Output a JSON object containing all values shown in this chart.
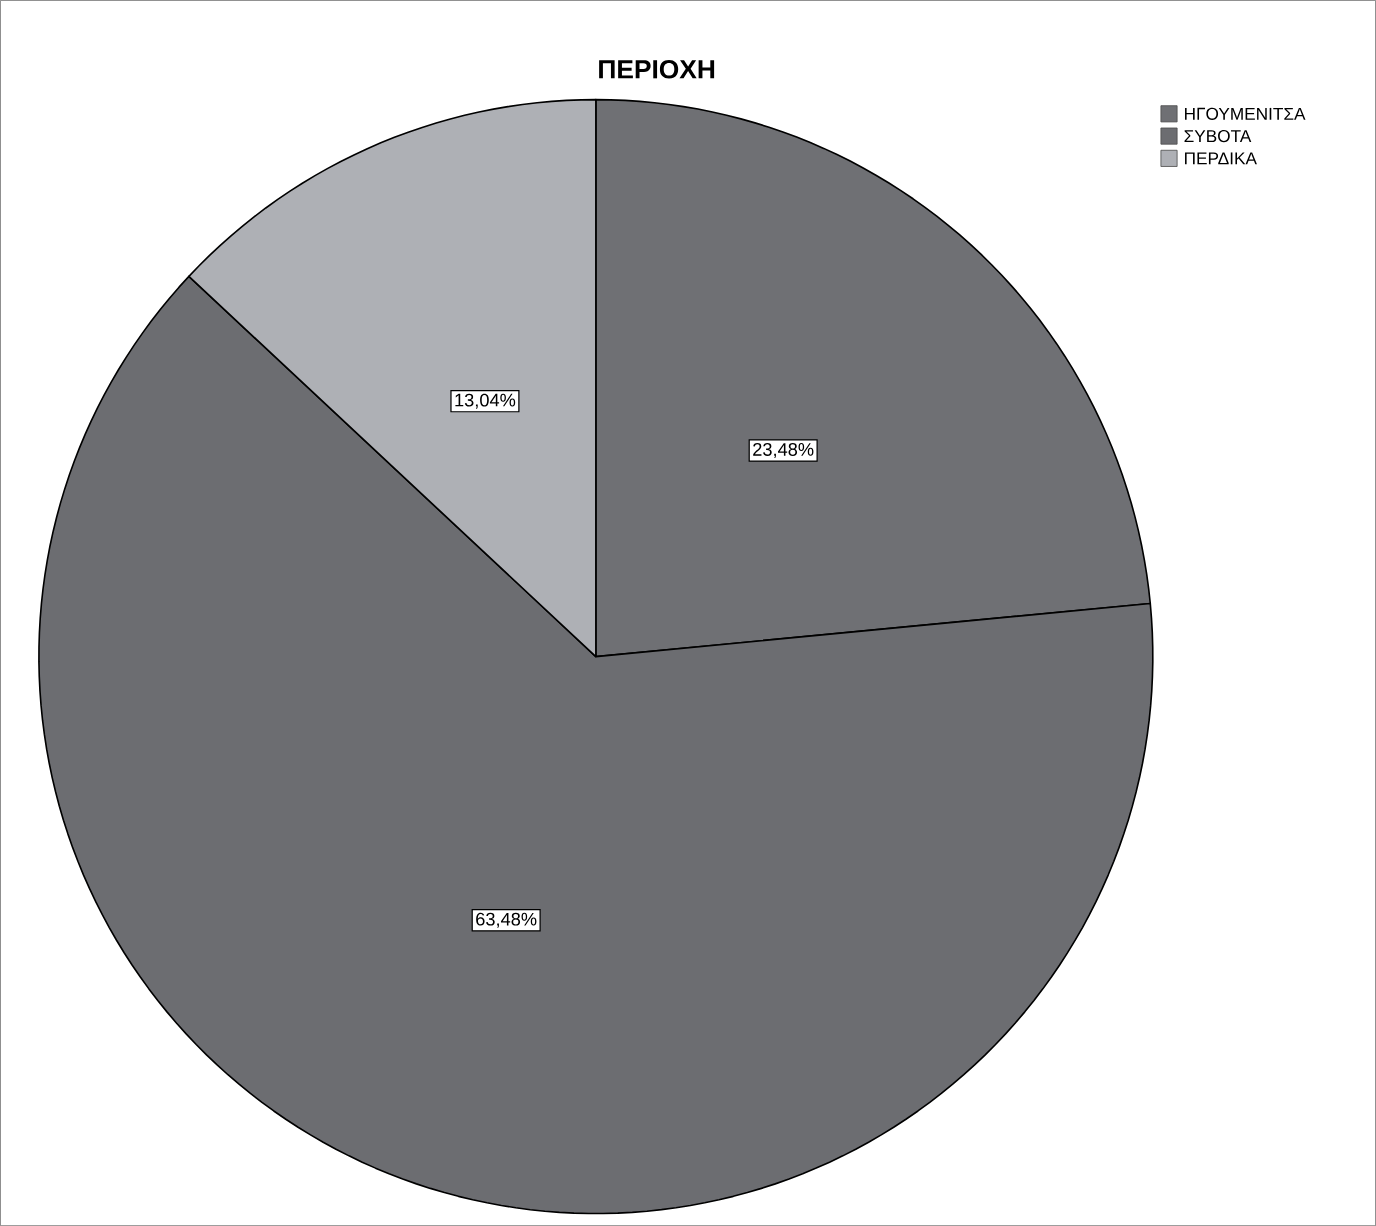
{
  "chart_data": {
    "type": "pie",
    "title": "ΠΕΡΙΟΧΗ",
    "categories": [
      "ΗΓΟΥΜΕΝΙΤΣΑ",
      "ΣΥΒΟΤΑ",
      "ΠΕΡΔΙΚΑ"
    ],
    "values": [
      23.48,
      63.48,
      13.04
    ],
    "value_labels": [
      "23,48%",
      "63,48%",
      "13,04%"
    ],
    "colors": [
      "#6f7074",
      "#6c6d71",
      "#aeb0b5"
    ],
    "legend": "top right"
  }
}
